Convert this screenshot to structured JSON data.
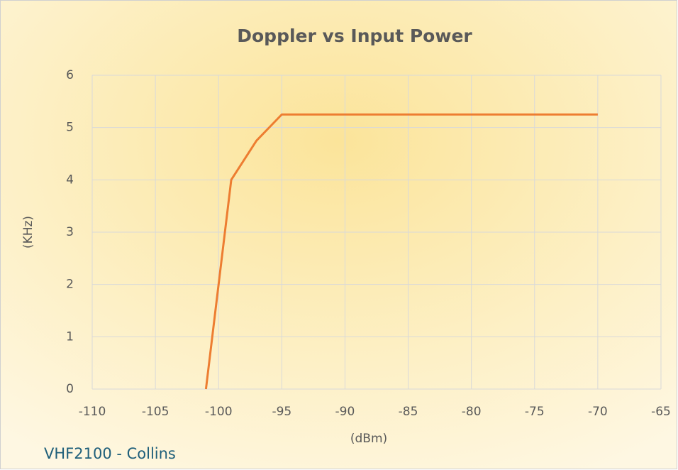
{
  "chart_data": {
    "type": "line",
    "title": "Doppler vs Input Power",
    "x_label": "(dBm)",
    "y_label": "(KHz)",
    "annotation": "VHF2100 - Collins",
    "x": [
      -101,
      -99,
      -97,
      -95,
      -70
    ],
    "series": [
      {
        "name": "Doppler",
        "color": "#ed7d31",
        "values": [
          0,
          4,
          4.75,
          5.25,
          5.25
        ]
      }
    ],
    "xlim": [
      -110,
      -65
    ],
    "xticks": [
      -110,
      -105,
      -100,
      -95,
      -90,
      -85,
      -80,
      -75,
      -70,
      -65
    ],
    "ylim": [
      0,
      6
    ],
    "yticks": [
      0,
      1,
      2,
      3,
      4,
      5,
      6
    ],
    "grid": true,
    "legend": false
  }
}
